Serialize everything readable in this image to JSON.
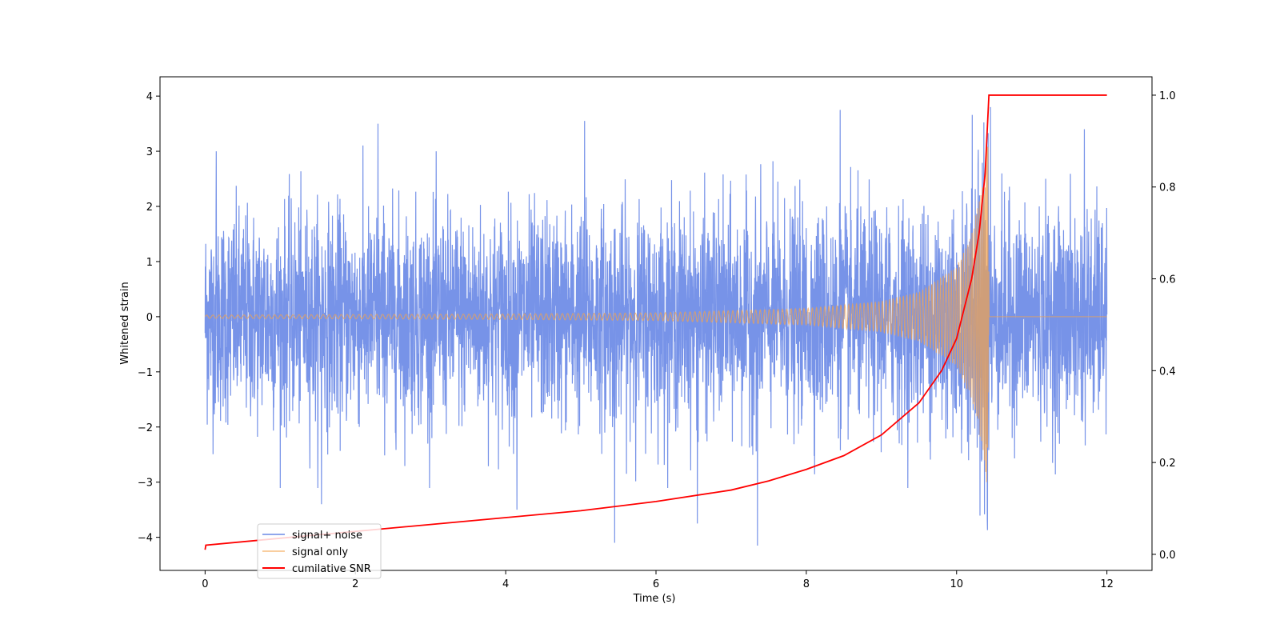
{
  "chart_data": {
    "type": "line",
    "title": "",
    "xlabel": "Time (s)",
    "ylabel": "Whitened strain",
    "y2label": "",
    "xlim": [
      -0.6,
      12.6
    ],
    "ylim": [
      -4.6,
      4.35
    ],
    "y2lim": [
      -0.035,
      1.04
    ],
    "xticks": [
      0,
      2,
      4,
      6,
      8,
      10,
      12
    ],
    "yticks": [
      -4,
      -3,
      -2,
      -1,
      0,
      1,
      2,
      3,
      4
    ],
    "y2ticks": [
      0.0,
      0.2,
      0.4,
      0.6,
      0.8,
      1.0
    ],
    "xtick_labels": [
      "0",
      "2",
      "4",
      "6",
      "8",
      "10",
      "12"
    ],
    "ytick_labels": [
      "−4",
      "−3",
      "−2",
      "−1",
      "0",
      "1",
      "2",
      "3",
      "4"
    ],
    "y2tick_labels": [
      "0.0",
      "0.2",
      "0.4",
      "0.6",
      "0.8",
      "1.0"
    ],
    "grid": false,
    "legend_position": "lower-left",
    "series": [
      {
        "name": "signal+ noise",
        "axis": "left",
        "color": "#6b8ae6",
        "kind": "noisy strain",
        "x_range": [
          0,
          12
        ],
        "typical_envelope": 2.3,
        "peaks": [
          {
            "x": 0.15,
            "y": 3.0
          },
          {
            "x": 1.55,
            "y": 3.4
          },
          {
            "x": 2.3,
            "y": 3.5
          },
          {
            "x": 5.05,
            "y": 3.55
          },
          {
            "x": 6.55,
            "y": 3.75
          },
          {
            "x": 8.45,
            "y": 3.75
          },
          {
            "x": 10.2,
            "y": 3.45
          },
          {
            "x": 10.45,
            "y": 3.8
          },
          {
            "x": 11.7,
            "y": 3.4
          },
          {
            "x": 5.45,
            "y": -4.1
          },
          {
            "x": 7.35,
            "y": -4.15
          },
          {
            "x": 6.55,
            "y": -3.75
          },
          {
            "x": 4.15,
            "y": -3.5
          },
          {
            "x": 1.55,
            "y": -3.4
          },
          {
            "x": 10.4,
            "y": -3.5
          }
        ]
      },
      {
        "name": "signal only",
        "axis": "left",
        "color": "#f5a34a",
        "kind": "chirp",
        "x_range": [
          0,
          12
        ],
        "merger_time": 10.43,
        "envelope": [
          {
            "x": 0,
            "y": 0.03
          },
          {
            "x": 2,
            "y": 0.04
          },
          {
            "x": 4,
            "y": 0.05
          },
          {
            "x": 6,
            "y": 0.07
          },
          {
            "x": 8,
            "y": 0.15
          },
          {
            "x": 9,
            "y": 0.28
          },
          {
            "x": 9.5,
            "y": 0.45
          },
          {
            "x": 10,
            "y": 0.9
          },
          {
            "x": 10.2,
            "y": 1.5
          },
          {
            "x": 10.35,
            "y": 2.4
          },
          {
            "x": 10.43,
            "y": 3.4
          }
        ]
      },
      {
        "name": "cumilative SNR",
        "axis": "right",
        "color": "#ff0000",
        "kind": "cumulative",
        "x": [
          0,
          0.01,
          1,
          2,
          3,
          4,
          5,
          6,
          7,
          7.5,
          8,
          8.5,
          9,
          9.5,
          9.8,
          10,
          10.2,
          10.3,
          10.38,
          10.43,
          12
        ],
        "y": [
          0.01,
          0.02,
          0.035,
          0.05,
          0.065,
          0.08,
          0.095,
          0.115,
          0.14,
          0.16,
          0.185,
          0.215,
          0.26,
          0.33,
          0.4,
          0.47,
          0.6,
          0.7,
          0.83,
          1.0,
          1.0
        ]
      }
    ]
  }
}
